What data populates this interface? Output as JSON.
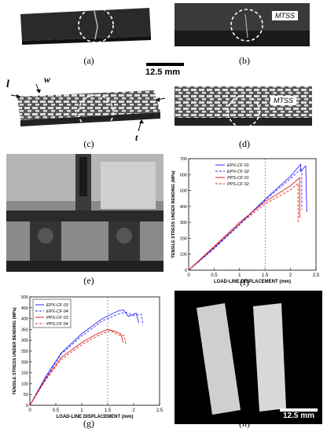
{
  "captions": {
    "a": "(a)",
    "b": "(b)",
    "c": "(c)",
    "d": "(d)",
    "e": "(e)",
    "f": "(f)",
    "g": "(g)",
    "h": "(h)"
  },
  "labels": {
    "mtss_b": "MTSS",
    "mtss_d": "MTSS",
    "scale_top": "12.5 mm",
    "scale_h": "12.5 mm",
    "dim_l": "l",
    "dim_w": "w",
    "dim_t": "t"
  },
  "chart_data": [
    {
      "type": "line",
      "panel": "f",
      "xlabel": "LOAD-LINE DISPLACEMENT (mm)",
      "ylabel": "TENSILE STRESS UNDER BENDING (MPa)",
      "xlim": [
        0,
        2.5
      ],
      "ylim": [
        0,
        700
      ],
      "xticks": [
        0,
        0.5,
        1,
        1.5,
        2,
        2.5
      ],
      "yticks": [
        0,
        100,
        200,
        300,
        400,
        500,
        600,
        700
      ],
      "vline_x": 1.5,
      "series": [
        {
          "name": "EPX-CF 01",
          "color": "#2a2aff",
          "dash": "",
          "points": [
            [
              0,
              0
            ],
            [
              0.5,
              140
            ],
            [
              1,
              290
            ],
            [
              1.5,
              445
            ],
            [
              2,
              590
            ],
            [
              2.2,
              665
            ],
            [
              2.2,
              620
            ],
            [
              2.3,
              655
            ],
            [
              2.32,
              365
            ]
          ]
        },
        {
          "name": "EPX-CF 02",
          "color": "#2a2aff",
          "dash": "3,2",
          "points": [
            [
              0,
              0
            ],
            [
              0.5,
              135
            ],
            [
              1,
              285
            ],
            [
              1.5,
              440
            ],
            [
              2,
              575
            ],
            [
              2.22,
              640
            ],
            [
              2.22,
              380
            ]
          ]
        },
        {
          "name": "PPS-CF 01",
          "color": "#e02020",
          "dash": "",
          "points": [
            [
              0,
              0
            ],
            [
              0.5,
              150
            ],
            [
              1,
              300
            ],
            [
              1.5,
              430
            ],
            [
              2,
              530
            ],
            [
              2.18,
              580
            ],
            [
              2.18,
              330
            ]
          ]
        },
        {
          "name": "PPS-CF 02",
          "color": "#e02020",
          "dash": "3,2",
          "points": [
            [
              0,
              0
            ],
            [
              0.5,
              145
            ],
            [
              1,
              290
            ],
            [
              1.5,
              415
            ],
            [
              2,
              505
            ],
            [
              2.15,
              545
            ],
            [
              2.15,
              300
            ]
          ]
        }
      ]
    },
    {
      "type": "line",
      "panel": "g",
      "xlabel": "LOAD-LINE DISPLACEMENT (mm)",
      "ylabel": "TENSILE STRESS UNDER BENDING (MPa)",
      "xlim": [
        0,
        2.5
      ],
      "ylim": [
        0,
        500
      ],
      "xticks": [
        0,
        0.5,
        1,
        1.5,
        2,
        2.5
      ],
      "yticks": [
        0,
        50,
        100,
        150,
        200,
        250,
        300,
        350,
        400,
        450,
        500
      ],
      "vline_x": 1.5,
      "series": [
        {
          "name": "EPX-CF 03",
          "color": "#2a2aff",
          "dash": "",
          "points": [
            [
              0,
              0
            ],
            [
              0.3,
              130
            ],
            [
              0.6,
              240
            ],
            [
              1,
              330
            ],
            [
              1.4,
              400
            ],
            [
              1.7,
              435
            ],
            [
              1.8,
              440
            ],
            [
              1.9,
              410
            ],
            [
              2.05,
              425
            ],
            [
              2.1,
              380
            ]
          ]
        },
        {
          "name": "EPX-CF 04",
          "color": "#2a2aff",
          "dash": "3,2",
          "points": [
            [
              0,
              0
            ],
            [
              0.3,
              125
            ],
            [
              0.6,
              235
            ],
            [
              1,
              320
            ],
            [
              1.4,
              390
            ],
            [
              1.7,
              420
            ],
            [
              1.85,
              430
            ],
            [
              2.0,
              415
            ],
            [
              2.15,
              420
            ],
            [
              2.18,
              370
            ]
          ]
        },
        {
          "name": "PPS-CF 03",
          "color": "#e02020",
          "dash": "",
          "points": [
            [
              0,
              0
            ],
            [
              0.3,
              120
            ],
            [
              0.6,
              220
            ],
            [
              1,
              290
            ],
            [
              1.3,
              330
            ],
            [
              1.5,
              350
            ],
            [
              1.65,
              340
            ],
            [
              1.75,
              330
            ],
            [
              1.8,
              290
            ]
          ]
        },
        {
          "name": "PPS-CF 04",
          "color": "#e02020",
          "dash": "3,2",
          "points": [
            [
              0,
              0
            ],
            [
              0.3,
              115
            ],
            [
              0.6,
              210
            ],
            [
              1,
              280
            ],
            [
              1.3,
              320
            ],
            [
              1.55,
              345
            ],
            [
              1.7,
              325
            ],
            [
              1.82,
              320
            ],
            [
              1.85,
              280
            ]
          ]
        }
      ]
    }
  ]
}
